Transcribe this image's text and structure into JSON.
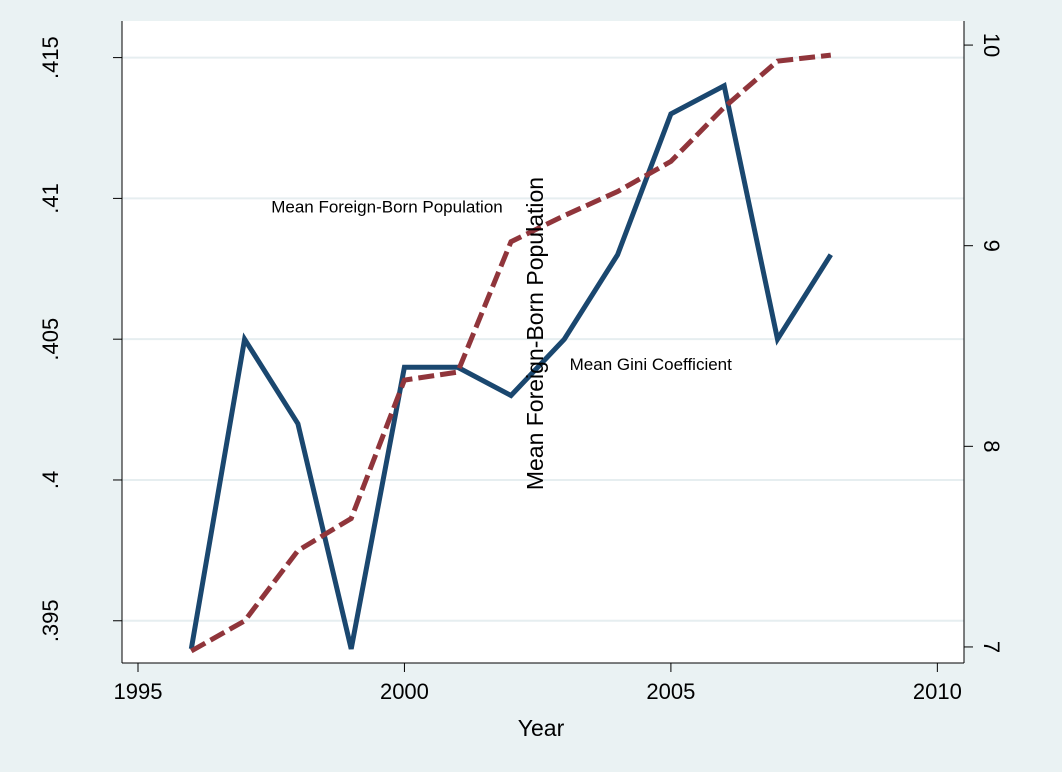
{
  "chart_data": {
    "type": "line",
    "xlabel": "Year",
    "ylabel_right": "",
    "ylabel_left": "",
    "x_ticks": [
      1995,
      2000,
      2005,
      2010
    ],
    "xlim": [
      1994.7,
      2010.5
    ],
    "y_left_ticks": [
      0.395,
      0.4,
      0.405,
      0.41,
      0.415
    ],
    "y_left_tick_labels": [
      ".395",
      ".4",
      ".405",
      ".41",
      ".415"
    ],
    "ylim_left": [
      0.3935,
      0.4163
    ],
    "y_right_ticks": [
      7,
      8,
      9,
      10
    ],
    "y_right_tick_labels": [
      "7",
      "8",
      "9",
      "10"
    ],
    "ylim_right": [
      6.92,
      10.12
    ],
    "grid": true,
    "x": [
      1996,
      1997,
      1998,
      1999,
      2000,
      2001,
      2002,
      2003,
      2004,
      2005,
      2006,
      2007,
      2008
    ],
    "series": [
      {
        "name": "Mean Gini Coefficient",
        "axis": "left",
        "color": "#1a476f",
        "style": "solid",
        "values": [
          0.394,
          0.405,
          0.402,
          0.394,
          0.404,
          0.404,
          0.403,
          0.405,
          0.408,
          0.413,
          0.414,
          0.405,
          0.408
        ]
      },
      {
        "name": "Mean Foreign-Born Population",
        "axis": "right",
        "color": "#90353b",
        "style": "dashed",
        "values": [
          6.98,
          7.13,
          7.48,
          7.64,
          8.33,
          8.37,
          9.02,
          9.15,
          9.27,
          9.42,
          9.69,
          9.92,
          9.95
        ]
      }
    ],
    "annotations": [
      {
        "text": "Mean Foreign-Born Population",
        "x": 1997.5,
        "y_left": 0.4095
      },
      {
        "text": "Mean Gini Coefficient",
        "x": 2003.1,
        "y_left": 0.4039
      },
      {
        "text": "Mean Foreign-Born Population",
        "x": 2002.6,
        "y_left": 0.4052,
        "rotated": true
      }
    ]
  }
}
